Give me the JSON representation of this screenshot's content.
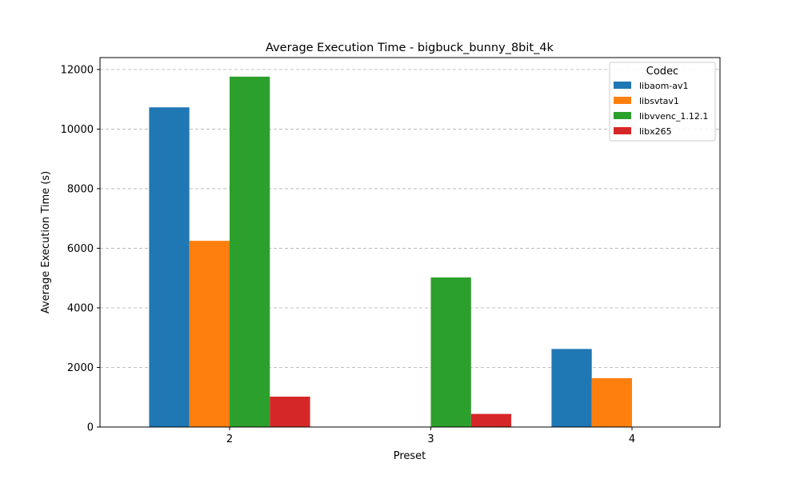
{
  "chart_data": {
    "type": "bar",
    "title": "Average Execution Time - bigbuck_bunny_8bit_4k",
    "xlabel": "Preset",
    "ylabel": "Average Execution Time (s)",
    "categories": [
      "2",
      "3",
      "4"
    ],
    "ylim": [
      0,
      12400
    ],
    "yticks": [
      0,
      2000,
      4000,
      6000,
      8000,
      10000,
      12000
    ],
    "grid": "y-dashed",
    "legend": {
      "title": "Codec",
      "placement": "top-right"
    },
    "series": [
      {
        "name": "libaom-av1",
        "color": "#1f77b4",
        "values": [
          10730,
          null,
          2620
        ]
      },
      {
        "name": "libsvtav1",
        "color": "#ff7f0e",
        "values": [
          6250,
          null,
          1640
        ]
      },
      {
        "name": "libvvenc_1.12.1",
        "color": "#2ca02c",
        "values": [
          11760,
          5020,
          null
        ]
      },
      {
        "name": "libx265",
        "color": "#d62728",
        "values": [
          1020,
          440,
          null
        ]
      }
    ]
  }
}
